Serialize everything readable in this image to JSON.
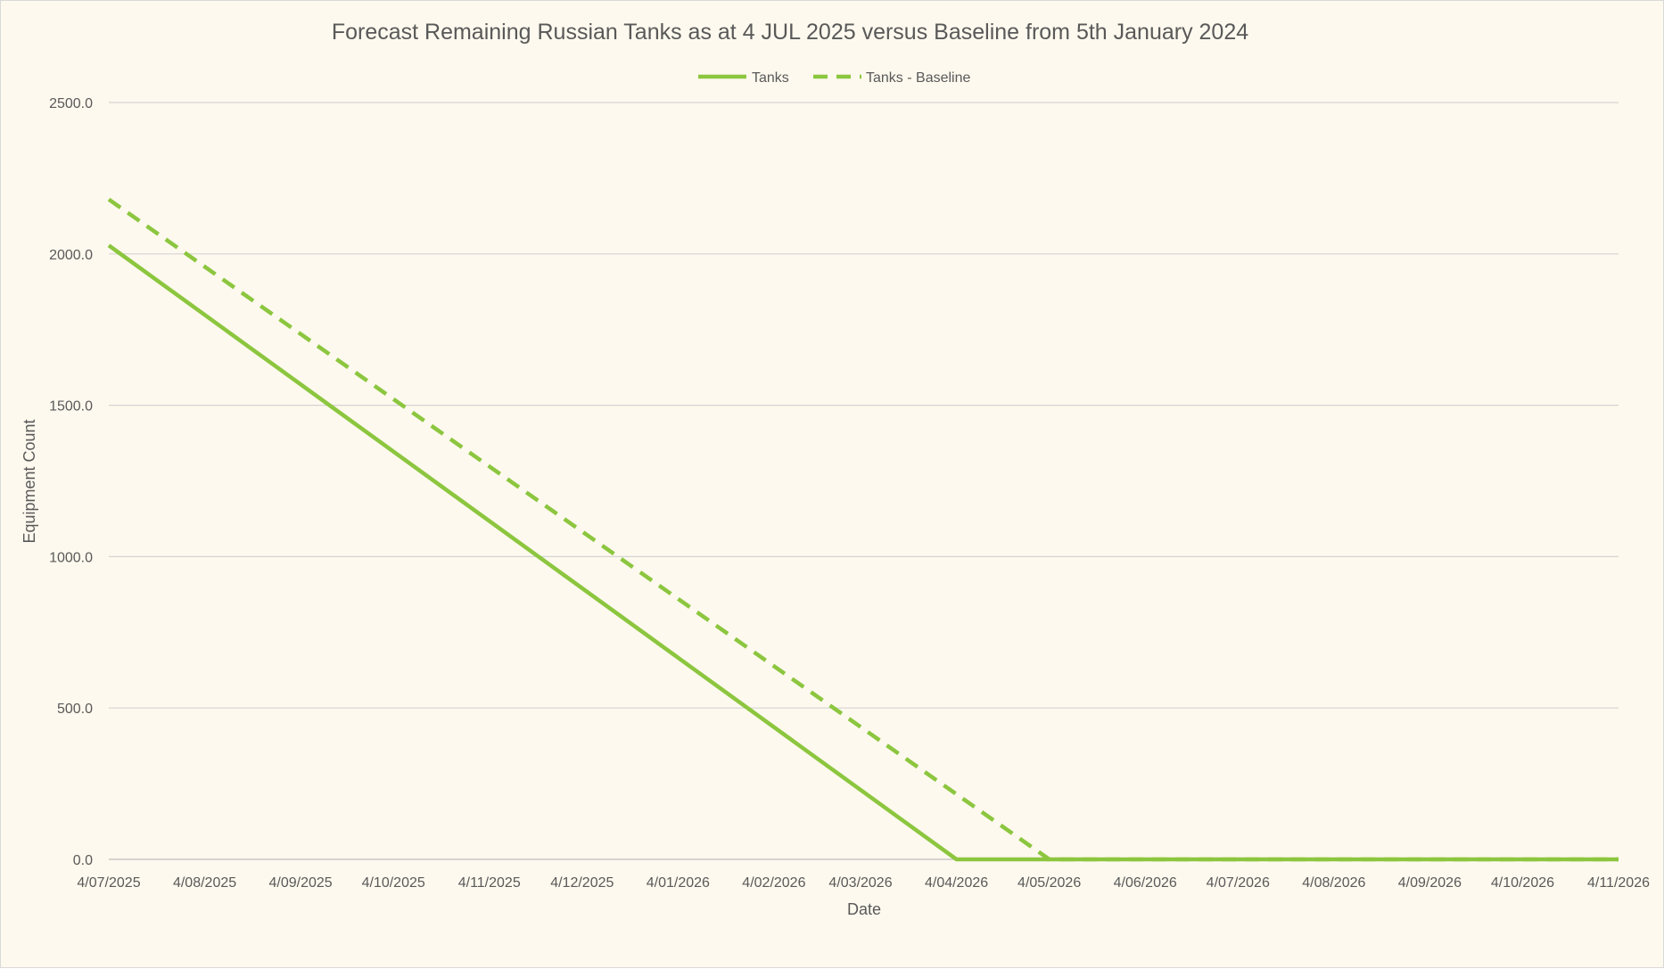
{
  "chart_data": {
    "type": "line",
    "title": "Forecast Remaining Russian Tanks as at 4 JUL 2025 versus Baseline from 5th January 2024",
    "xlabel": "Date",
    "ylabel": "Equipment Count",
    "ylim": [
      0,
      2500
    ],
    "yticks": [
      "0.0",
      "500.0",
      "1000.0",
      "1500.0",
      "2000.0",
      "2500.0"
    ],
    "ytick_values": [
      0,
      500,
      1000,
      1500,
      2000,
      2500
    ],
    "xlim": [
      "2025-07-04",
      "2026-11-04"
    ],
    "x_tick_labels": [
      "4/07/2025",
      "4/08/2025",
      "4/09/2025",
      "4/10/2025",
      "4/11/2025",
      "4/12/2025",
      "4/01/2026",
      "4/02/2026",
      "4/03/2026",
      "4/04/2026",
      "4/05/2026",
      "4/06/2026",
      "4/07/2026",
      "4/08/2026",
      "4/09/2026",
      "4/10/2026",
      "4/11/2026"
    ],
    "x_tick_dates": [
      "2025-07-04",
      "2025-08-04",
      "2025-09-04",
      "2025-10-04",
      "2025-11-04",
      "2025-12-04",
      "2026-01-04",
      "2026-02-04",
      "2026-03-04",
      "2026-04-04",
      "2026-05-04",
      "2026-06-04",
      "2026-07-04",
      "2026-08-04",
      "2026-09-04",
      "2026-10-04",
      "2026-11-04"
    ],
    "grid": true,
    "legend_position": "top-center",
    "series": [
      {
        "name": "Tanks",
        "style": "solid",
        "color": "#8cc63f",
        "points": [
          [
            "2025-07-04",
            2028
          ],
          [
            "2026-04-04",
            0
          ],
          [
            "2026-11-04",
            0
          ]
        ]
      },
      {
        "name": "Tanks - Baseline",
        "style": "dashed",
        "color": "#8cc63f",
        "points": [
          [
            "2025-07-04",
            2180
          ],
          [
            "2026-05-04",
            0
          ],
          [
            "2026-11-04",
            0
          ]
        ]
      }
    ]
  }
}
